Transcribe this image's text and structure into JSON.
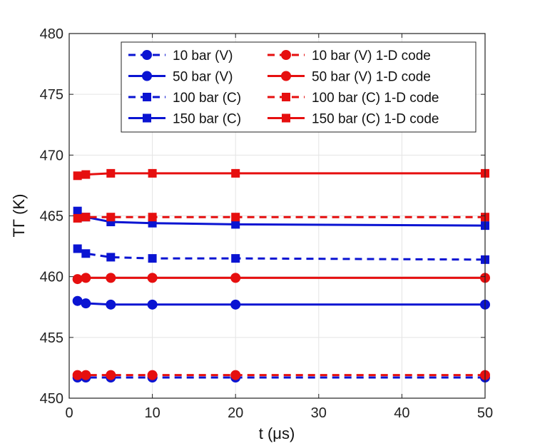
{
  "chart_data": {
    "type": "line",
    "title": "",
    "xlabel": "t (μs)",
    "ylabel": "TΓ (K)",
    "xlim": [
      0,
      50
    ],
    "ylim": [
      450,
      480
    ],
    "xticks": [
      0,
      10,
      20,
      30,
      40,
      50
    ],
    "yticks": [
      450,
      455,
      460,
      465,
      470,
      475,
      480
    ],
    "grid": true,
    "legend_position": "top-right",
    "x": [
      1,
      2,
      5,
      10,
      20,
      50
    ],
    "series": [
      {
        "name": "10 bar (V)",
        "color": "#0a14d2",
        "dash": true,
        "marker": "circle",
        "values": [
          451.7,
          451.7,
          451.7,
          451.7,
          451.7,
          451.7
        ]
      },
      {
        "name": "50 bar (V)",
        "color": "#0a14d2",
        "dash": false,
        "marker": "circle",
        "values": [
          458.0,
          457.8,
          457.7,
          457.7,
          457.7,
          457.7
        ]
      },
      {
        "name": "100 bar (C)",
        "color": "#0a14d2",
        "dash": true,
        "marker": "square",
        "values": [
          462.3,
          461.9,
          461.6,
          461.5,
          461.5,
          461.4
        ]
      },
      {
        "name": "150 bar (C)",
        "color": "#0a14d2",
        "dash": false,
        "marker": "square",
        "values": [
          465.4,
          464.9,
          464.5,
          464.4,
          464.3,
          464.2
        ]
      },
      {
        "name": "10 bar (V) 1-D code",
        "color": "#e60f0f",
        "dash": true,
        "marker": "circle",
        "values": [
          451.9,
          451.9,
          451.9,
          451.9,
          451.9,
          451.9
        ]
      },
      {
        "name": "50 bar (V) 1-D code",
        "color": "#e60f0f",
        "dash": false,
        "marker": "circle",
        "values": [
          459.8,
          459.9,
          459.9,
          459.9,
          459.9,
          459.9
        ]
      },
      {
        "name": "100 bar (C) 1-D code",
        "color": "#e60f0f",
        "dash": true,
        "marker": "square",
        "values": [
          464.8,
          464.9,
          464.9,
          464.9,
          464.9,
          464.9
        ]
      },
      {
        "name": "150 bar (C) 1-D code",
        "color": "#e60f0f",
        "dash": false,
        "marker": "square",
        "values": [
          468.3,
          468.4,
          468.5,
          468.5,
          468.5,
          468.5
        ]
      }
    ]
  }
}
